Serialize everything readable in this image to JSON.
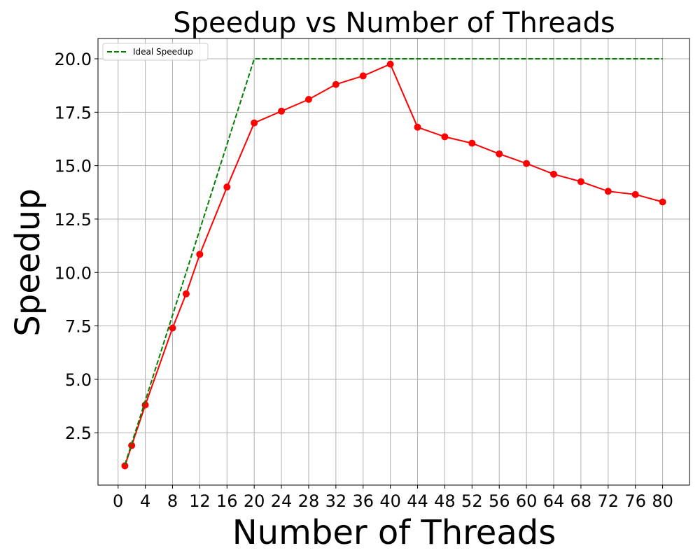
{
  "chart_data": {
    "type": "line",
    "title": "Speedup vs Number of Threads",
    "xlabel": "Number of Threads",
    "ylabel": "Speedup",
    "xlim": [
      -2.95,
      83.95
    ],
    "ylim": [
      0.05,
      20.95
    ],
    "xticks": [
      0,
      4,
      8,
      12,
      16,
      20,
      24,
      28,
      32,
      36,
      40,
      44,
      48,
      52,
      56,
      60,
      64,
      68,
      72,
      76,
      80
    ],
    "yticks": [
      2.5,
      5.0,
      7.5,
      10.0,
      12.5,
      15.0,
      17.5,
      20.0
    ],
    "grid": true,
    "legend": {
      "placement": "upper-left",
      "entries": [
        "Ideal Speedup"
      ]
    },
    "series": [
      {
        "name": "",
        "color": "#ff0000",
        "style": "solid",
        "marker": "circle",
        "x": [
          1,
          2,
          4,
          8,
          10,
          12,
          16,
          20,
          24,
          28,
          32,
          36,
          40,
          44,
          48,
          52,
          56,
          60,
          64,
          68,
          72,
          76,
          80
        ],
        "y": [
          0.95,
          1.9,
          3.8,
          7.4,
          9.0,
          10.85,
          14.0,
          17.0,
          17.55,
          18.1,
          18.8,
          19.2,
          19.75,
          16.8,
          16.35,
          16.05,
          15.55,
          15.1,
          14.6,
          14.25,
          13.8,
          13.65,
          13.3
        ]
      },
      {
        "name": "Ideal Speedup",
        "color": "#008000",
        "style": "dashed",
        "marker": "none",
        "x": [
          1,
          2,
          4,
          8,
          12,
          16,
          20,
          24,
          28,
          32,
          36,
          40,
          44,
          48,
          52,
          56,
          60,
          64,
          68,
          72,
          76,
          80
        ],
        "y": [
          1,
          2,
          4,
          8,
          12,
          16,
          20,
          20,
          20,
          20,
          20,
          20,
          20,
          20,
          20,
          20,
          20,
          20,
          20,
          20,
          20,
          20
        ]
      }
    ]
  }
}
